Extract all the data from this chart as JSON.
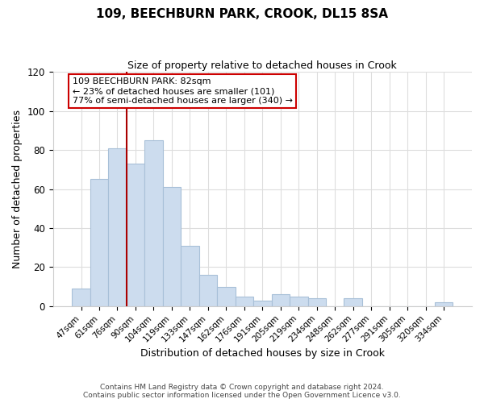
{
  "title": "109, BEECHBURN PARK, CROOK, DL15 8SA",
  "subtitle": "Size of property relative to detached houses in Crook",
  "xlabel": "Distribution of detached houses by size in Crook",
  "ylabel": "Number of detached properties",
  "bar_labels": [
    "47sqm",
    "61sqm",
    "76sqm",
    "90sqm",
    "104sqm",
    "119sqm",
    "133sqm",
    "147sqm",
    "162sqm",
    "176sqm",
    "191sqm",
    "205sqm",
    "219sqm",
    "234sqm",
    "248sqm",
    "262sqm",
    "277sqm",
    "291sqm",
    "305sqm",
    "320sqm",
    "334sqm"
  ],
  "bar_heights": [
    9,
    65,
    81,
    73,
    85,
    61,
    31,
    16,
    10,
    5,
    3,
    6,
    5,
    4,
    0,
    4,
    0,
    0,
    0,
    0,
    2
  ],
  "bar_color": "#ccdcee",
  "bar_edge_color": "#a8c0d8",
  "vline_bin_index": 2,
  "vline_color": "#aa0000",
  "ylim": [
    0,
    120
  ],
  "yticks": [
    0,
    20,
    40,
    60,
    80,
    100,
    120
  ],
  "annotation_text_line1": "109 BEECHBURN PARK: 82sqm",
  "annotation_text_line2": "← 23% of detached houses are smaller (101)",
  "annotation_text_line3": "77% of semi-detached houses are larger (340) →",
  "annotation_box_color": "#ffffff",
  "annotation_box_edge": "#cc0000",
  "footer_line1": "Contains HM Land Registry data © Crown copyright and database right 2024.",
  "footer_line2": "Contains public sector information licensed under the Open Government Licence v3.0.",
  "background_color": "#ffffff",
  "grid_color": "#dddddd"
}
